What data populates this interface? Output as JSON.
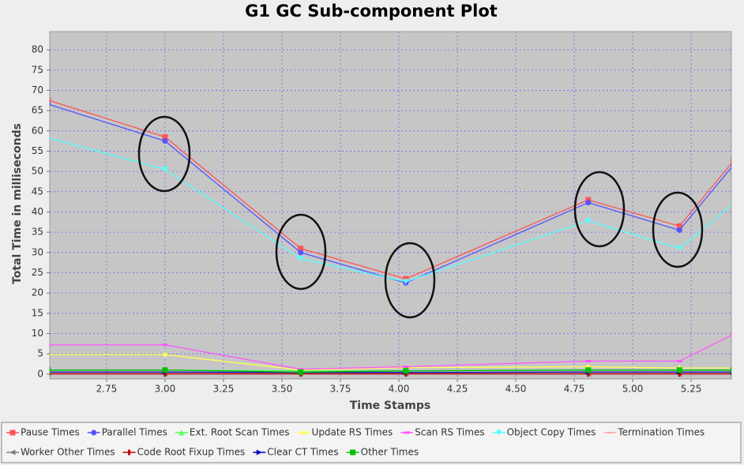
{
  "chart_data": {
    "type": "line",
    "title": "G1 GC Sub-component Plot",
    "x_label": "Time Stamps",
    "y_label": "Total Time in milliseconds",
    "x": [
      2.5,
      3.0,
      3.58,
      4.03,
      4.81,
      5.2,
      5.43
    ],
    "xlim": [
      2.507,
      5.422
    ],
    "ylim": [
      -1.2,
      84.5
    ],
    "xticks": [
      2.75,
      {
        "value": 3,
        "label": "3.00"
      },
      3.25,
      {
        "value": 3.5,
        "label": "3.50"
      },
      3.75,
      {
        "value": 4,
        "label": "4.00"
      },
      4.25,
      {
        "value": 4.5,
        "label": "4.50"
      },
      4.75,
      {
        "value": 5,
        "label": "5.00"
      },
      5.25
    ],
    "yticks": [
      0,
      5,
      10,
      15,
      20,
      25,
      30,
      35,
      40,
      45,
      50,
      55,
      60,
      65,
      70,
      75,
      80
    ],
    "grid": true,
    "legend": "bottom",
    "series": [
      {
        "name": "Pause Times",
        "color": "#ff5555",
        "values": [
          67.6,
          58.5,
          31,
          23.5,
          43,
          36.5,
          52.5
        ]
      },
      {
        "name": "Parallel Times",
        "color": "#5555ff",
        "values": [
          66.6,
          57.5,
          30,
          22.5,
          42.3,
          35.5,
          51.5
        ]
      },
      {
        "name": "Ext. Root Scan Times",
        "color": "#55ff55",
        "values": [
          1,
          1,
          0.8,
          0.8,
          1,
          1,
          1
        ]
      },
      {
        "name": "Update RS Times",
        "color": "#ffff55",
        "values": [
          4.8,
          4.8,
          1,
          1.6,
          1.8,
          1.5,
          1.5
        ]
      },
      {
        "name": "Scan RS Times",
        "color": "#ff55ff",
        "values": [
          7.2,
          7.2,
          1.2,
          1.8,
          3.2,
          3.2,
          9.8
        ]
      },
      {
        "name": "Object Copy Times",
        "color": "#55ffff",
        "values": [
          58.3,
          50.5,
          28.5,
          22.8,
          37.8,
          31,
          42
        ]
      },
      {
        "name": "Termination Times",
        "color": "#ffaaaa",
        "values": [
          0.2,
          0.2,
          0.2,
          0.2,
          0.2,
          0.2,
          0.2
        ]
      },
      {
        "name": "Worker Other Times",
        "color": "#808080",
        "values": [
          0.1,
          0.1,
          0.1,
          0.1,
          0.1,
          0.1,
          0.1
        ]
      },
      {
        "name": "Code Root Fixup Times",
        "color": "#c00000",
        "values": [
          0.05,
          0.05,
          0.05,
          0.05,
          0.05,
          0.05,
          0.05
        ]
      },
      {
        "name": "Clear CT Times",
        "color": "#0000c0",
        "values": [
          0.5,
          0.5,
          0.4,
          0.4,
          0.5,
          0.5,
          0.5
        ]
      },
      {
        "name": "Other Times",
        "color": "#00c000",
        "values": [
          1,
          1,
          0.5,
          0.8,
          1,
          1,
          1
        ]
      }
    ]
  }
}
